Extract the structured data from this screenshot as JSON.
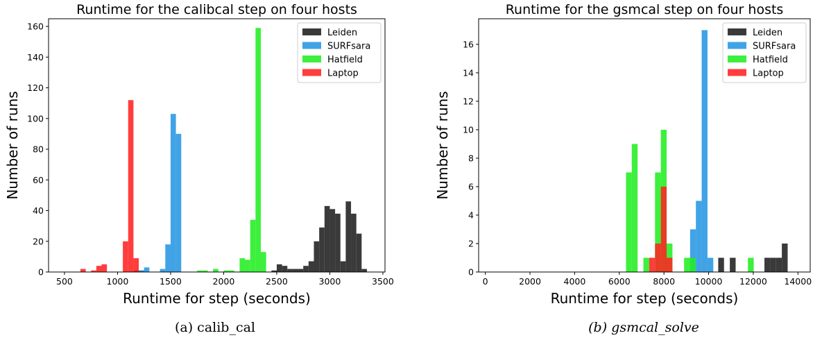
{
  "chart_data": [
    {
      "type": "bar",
      "title": "Runtime for the calibcal step on four hosts",
      "xlabel": "Runtime for step (seconds)",
      "ylabel": "Number of runs",
      "caption": "(a) calib_cal",
      "caption_italic": false,
      "xlim": [
        350,
        3520
      ],
      "ylim": [
        0,
        165
      ],
      "xticks": [
        500,
        1000,
        1500,
        2000,
        2500,
        3000,
        3500
      ],
      "yticks": [
        0,
        20,
        40,
        60,
        80,
        100,
        120,
        140,
        160
      ],
      "bin_width": 50,
      "legend_position": "top-right",
      "series": [
        {
          "name": "Leiden",
          "color": "#1f1f1f",
          "bins": [
            [
              1150,
              1
            ],
            [
              1200,
              1
            ],
            [
              2450,
              1
            ],
            [
              2500,
              5
            ],
            [
              2550,
              4
            ],
            [
              2600,
              2
            ],
            [
              2650,
              2
            ],
            [
              2700,
              2
            ],
            [
              2750,
              4
            ],
            [
              2800,
              7
            ],
            [
              2850,
              20
            ],
            [
              2900,
              29
            ],
            [
              2950,
              43
            ],
            [
              3000,
              41
            ],
            [
              3050,
              38
            ],
            [
              3100,
              7
            ],
            [
              3150,
              46
            ],
            [
              3200,
              38
            ],
            [
              3250,
              25
            ],
            [
              3300,
              2
            ]
          ]
        },
        {
          "name": "SURFsara",
          "color": "#2596e3",
          "bins": [
            [
              1200,
              1
            ],
            [
              1250,
              3
            ],
            [
              1400,
              2
            ],
            [
              1450,
              18
            ],
            [
              1500,
              103
            ],
            [
              1550,
              90
            ]
          ]
        },
        {
          "name": "Hatfield",
          "color": "#22ee22",
          "bins": [
            [
              1750,
              1
            ],
            [
              1800,
              1
            ],
            [
              1900,
              2
            ],
            [
              2000,
              1
            ],
            [
              2050,
              1
            ],
            [
              2150,
              9
            ],
            [
              2200,
              8
            ],
            [
              2250,
              34
            ],
            [
              2300,
              159
            ],
            [
              2350,
              13
            ]
          ]
        },
        {
          "name": "Laptop",
          "color": "#ff2222",
          "bins": [
            [
              650,
              2
            ],
            [
              750,
              1
            ],
            [
              800,
              4
            ],
            [
              850,
              5
            ],
            [
              1050,
              20
            ],
            [
              1100,
              112
            ],
            [
              1150,
              9
            ]
          ]
        }
      ]
    },
    {
      "type": "bar",
      "title": "Runtime for the gsmcal step on four hosts",
      "xlabel": "Runtime for step (seconds)",
      "ylabel": "Number of runs",
      "caption": "(b) gsmcal_solve",
      "caption_italic": true,
      "xlim": [
        -300,
        14550
      ],
      "ylim": [
        0,
        17.8
      ],
      "xticks": [
        0,
        2000,
        4000,
        6000,
        8000,
        10000,
        12000,
        14000
      ],
      "yticks": [
        0,
        2,
        4,
        6,
        8,
        10,
        12,
        14,
        16
      ],
      "bin_width": 260,
      "legend_position": "top-right",
      "series": [
        {
          "name": "Leiden",
          "color": "#1f1f1f",
          "bins": [
            [
              10430,
              1
            ],
            [
              10950,
              1
            ],
            [
              12500,
              1
            ],
            [
              12760,
              1
            ],
            [
              13020,
              1
            ],
            [
              13280,
              2
            ]
          ]
        },
        {
          "name": "SURFsara",
          "color": "#2596e3",
          "bins": [
            [
              9170,
              3
            ],
            [
              9430,
              5
            ],
            [
              9690,
              17
            ],
            [
              9950,
              1
            ]
          ]
        },
        {
          "name": "Hatfield",
          "color": "#22ee22",
          "bins": [
            [
              6300,
              7
            ],
            [
              6560,
              9
            ],
            [
              7080,
              1
            ],
            [
              7600,
              7
            ],
            [
              7860,
              10
            ],
            [
              8120,
              2
            ],
            [
              8900,
              1
            ],
            [
              9160,
              1
            ],
            [
              11760,
              1
            ]
          ]
        },
        {
          "name": "Laptop",
          "color": "#ff2222",
          "bins": [
            [
              7340,
              1
            ],
            [
              7600,
              2
            ],
            [
              7860,
              6
            ],
            [
              8120,
              1
            ]
          ]
        }
      ]
    }
  ]
}
